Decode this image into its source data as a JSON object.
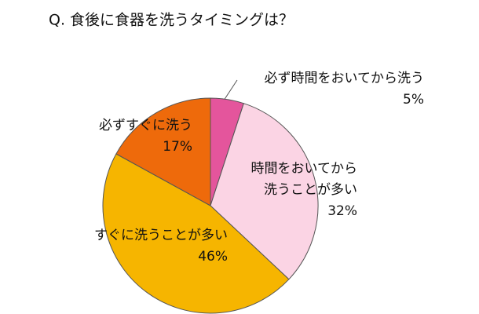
{
  "chart_data": {
    "type": "pie",
    "title": "Q. 食後に食器を洗うタイミングは？",
    "categories": [
      "必ず時間をおいてから洗う",
      "時間をおいてから\n洗うことが多い",
      "すぐに洗うことが多い",
      "必ずすぐに洗う"
    ],
    "values": [
      5,
      32,
      46,
      17
    ],
    "value_labels": [
      "5%",
      "32%",
      "46%",
      "17%"
    ],
    "colors": [
      "#e4559c",
      "#fbd4e4",
      "#f6b500",
      "#ee6a0b"
    ]
  }
}
